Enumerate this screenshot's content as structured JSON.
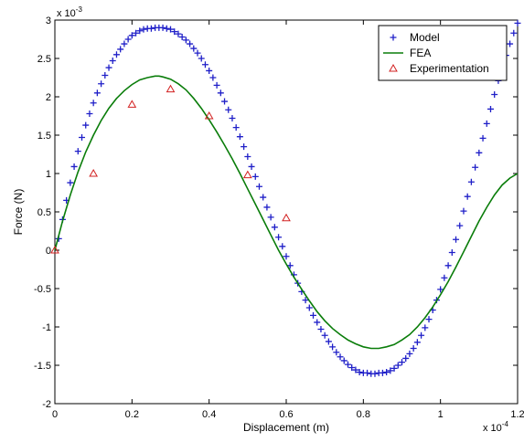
{
  "chart_data": {
    "type": "line",
    "xlabel": "Displacement (m)",
    "ylabel": "Force (N)",
    "x_exponent_base": "x 10",
    "x_exponent_power": "-4",
    "y_exponent_base": "x 10",
    "y_exponent_power": "-3",
    "xlim": [
      0,
      1.2
    ],
    "ylim": [
      -2,
      3
    ],
    "xticks": [
      "0",
      "0.2",
      "0.4",
      "0.6",
      "0.8",
      "1",
      "1.2"
    ],
    "yticks": [
      "-2",
      "-1.5",
      "-1",
      "-0.5",
      "0",
      "0.5",
      "1",
      "1.5",
      "2",
      "2.5",
      "3"
    ],
    "grid": false,
    "legend_position": "top-right",
    "series": [
      {
        "name": "Model",
        "style": "plus-markers",
        "color": "#1f1fc8",
        "x": [
          0.01,
          0.02,
          0.03,
          0.04,
          0.05,
          0.06,
          0.07,
          0.08,
          0.09,
          0.1,
          0.11,
          0.12,
          0.13,
          0.14,
          0.15,
          0.16,
          0.17,
          0.18,
          0.19,
          0.2,
          0.21,
          0.22,
          0.23,
          0.24,
          0.25,
          0.26,
          0.27,
          0.28,
          0.29,
          0.3,
          0.31,
          0.32,
          0.33,
          0.34,
          0.35,
          0.36,
          0.37,
          0.38,
          0.39,
          0.4,
          0.41,
          0.42,
          0.43,
          0.44,
          0.45,
          0.46,
          0.47,
          0.48,
          0.49,
          0.5,
          0.51,
          0.52,
          0.53,
          0.54,
          0.55,
          0.56,
          0.57,
          0.58,
          0.59,
          0.6,
          0.61,
          0.62,
          0.63,
          0.64,
          0.65,
          0.66,
          0.67,
          0.68,
          0.69,
          0.7,
          0.71,
          0.72,
          0.73,
          0.74,
          0.75,
          0.76,
          0.77,
          0.78,
          0.79,
          0.8,
          0.81,
          0.82,
          0.83,
          0.84,
          0.85,
          0.86,
          0.87,
          0.88,
          0.89,
          0.9,
          0.91,
          0.92,
          0.93,
          0.94,
          0.95,
          0.96,
          0.97,
          0.98,
          0.99,
          1.0,
          1.01,
          1.02,
          1.03,
          1.04,
          1.05,
          1.06,
          1.07,
          1.08,
          1.09,
          1.1,
          1.11,
          1.12,
          1.13,
          1.14,
          1.15,
          1.16,
          1.17,
          1.18,
          1.19,
          1.2
        ],
        "y": [
          0.15,
          0.4,
          0.65,
          0.88,
          1.09,
          1.29,
          1.47,
          1.63,
          1.78,
          1.92,
          2.05,
          2.17,
          2.28,
          2.38,
          2.47,
          2.55,
          2.62,
          2.69,
          2.75,
          2.8,
          2.83,
          2.86,
          2.88,
          2.89,
          2.89,
          2.9,
          2.9,
          2.9,
          2.89,
          2.88,
          2.85,
          2.82,
          2.78,
          2.74,
          2.69,
          2.63,
          2.57,
          2.5,
          2.42,
          2.34,
          2.25,
          2.15,
          2.05,
          1.94,
          1.83,
          1.72,
          1.6,
          1.48,
          1.35,
          1.22,
          1.09,
          0.96,
          0.83,
          0.69,
          0.56,
          0.43,
          0.3,
          0.17,
          0.05,
          -0.08,
          -0.2,
          -0.32,
          -0.43,
          -0.54,
          -0.65,
          -0.75,
          -0.85,
          -0.94,
          -1.03,
          -1.11,
          -1.19,
          -1.26,
          -1.33,
          -1.39,
          -1.44,
          -1.49,
          -1.53,
          -1.56,
          -1.59,
          -1.6,
          -1.6,
          -1.61,
          -1.61,
          -1.6,
          -1.6,
          -1.59,
          -1.57,
          -1.54,
          -1.5,
          -1.46,
          -1.41,
          -1.35,
          -1.28,
          -1.2,
          -1.11,
          -1.01,
          -0.9,
          -0.78,
          -0.65,
          -0.51,
          -0.36,
          -0.2,
          -0.03,
          0.14,
          0.32,
          0.51,
          0.7,
          0.89,
          1.08,
          1.27,
          1.46,
          1.65,
          1.84,
          2.03,
          2.21,
          2.38,
          2.54,
          2.69,
          2.83,
          2.96
        ]
      },
      {
        "name": "FEA",
        "style": "line",
        "color": "#0a7d0a",
        "x": [
          0.0,
          0.02,
          0.04,
          0.06,
          0.08,
          0.1,
          0.12,
          0.14,
          0.16,
          0.18,
          0.2,
          0.22,
          0.24,
          0.26,
          0.27,
          0.28,
          0.3,
          0.32,
          0.34,
          0.36,
          0.38,
          0.4,
          0.42,
          0.44,
          0.46,
          0.48,
          0.5,
          0.52,
          0.54,
          0.56,
          0.58,
          0.6,
          0.62,
          0.64,
          0.66,
          0.68,
          0.7,
          0.72,
          0.74,
          0.76,
          0.78,
          0.8,
          0.82,
          0.84,
          0.86,
          0.88,
          0.9,
          0.92,
          0.94,
          0.96,
          0.98,
          1.0,
          1.02,
          1.04,
          1.06,
          1.08,
          1.1,
          1.12,
          1.14,
          1.16,
          1.18,
          1.2
        ],
        "y": [
          0.0,
          0.38,
          0.72,
          1.02,
          1.28,
          1.5,
          1.69,
          1.85,
          1.98,
          2.08,
          2.16,
          2.22,
          2.25,
          2.27,
          2.27,
          2.26,
          2.23,
          2.17,
          2.09,
          1.98,
          1.85,
          1.7,
          1.54,
          1.37,
          1.19,
          1.0,
          0.8,
          0.6,
          0.4,
          0.2,
          0.0,
          -0.18,
          -0.35,
          -0.51,
          -0.66,
          -0.8,
          -0.92,
          -1.02,
          -1.1,
          -1.17,
          -1.22,
          -1.26,
          -1.28,
          -1.28,
          -1.26,
          -1.23,
          -1.17,
          -1.1,
          -1.0,
          -0.88,
          -0.74,
          -0.58,
          -0.41,
          -0.22,
          -0.02,
          0.18,
          0.38,
          0.56,
          0.72,
          0.85,
          0.94,
          1.0
        ]
      },
      {
        "name": "Experimentation",
        "style": "triangle-markers",
        "color": "#d22020",
        "x": [
          0.0,
          0.1,
          0.2,
          0.3,
          0.4,
          0.5,
          0.6
        ],
        "y": [
          0.0,
          1.0,
          1.9,
          2.1,
          1.75,
          0.98,
          0.42
        ]
      }
    ]
  }
}
